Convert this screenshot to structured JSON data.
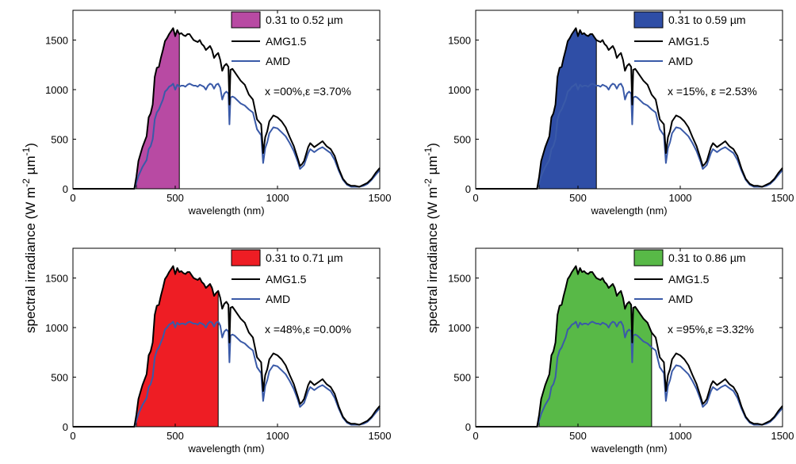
{
  "figure": {
    "ylabel": "spectral  irradiance  (W m",
    "ylabel_sup1": "-2",
    "ylabel_mid": "  µm",
    "ylabel_sup2": "-1",
    "ylabel_end": ")"
  },
  "chart_data": [
    {
      "type": "area",
      "panel": "top-left",
      "xlabel": "wavelength (nm)",
      "xlim": [
        0,
        1500
      ],
      "ylim": [
        0,
        1800
      ],
      "xticks": [
        0,
        500,
        1000,
        1500
      ],
      "yticks": [
        0,
        500,
        1000,
        1500
      ],
      "fill_range_nm": [
        310,
        520
      ],
      "fill_color": "#b84aa3",
      "legend": [
        "0.31 to 0.52 µm",
        "AMG1.5",
        "AMD"
      ],
      "annotation": "x =00%,ε =3.70%",
      "grid": false,
      "legend_position": "top-right"
    },
    {
      "type": "area",
      "panel": "top-right",
      "xlabel": "wavelength (nm)",
      "xlim": [
        0,
        1500
      ],
      "ylim": [
        0,
        1800
      ],
      "xticks": [
        0,
        500,
        1000,
        1500
      ],
      "yticks": [
        0,
        500,
        1000,
        1500
      ],
      "fill_range_nm": [
        310,
        590
      ],
      "fill_color": "#2f4ea6",
      "legend": [
        "0.31 to 0.59 µm",
        "AMG1.5",
        "AMD"
      ],
      "annotation": "x =15%, ε =2.53%",
      "grid": false,
      "legend_position": "top-right"
    },
    {
      "type": "area",
      "panel": "bottom-left",
      "xlabel": "wavelength (nm)",
      "xlim": [
        0,
        1500
      ],
      "ylim": [
        0,
        1800
      ],
      "xticks": [
        0,
        500,
        1000,
        1500
      ],
      "yticks": [
        0,
        500,
        1000,
        1500
      ],
      "fill_range_nm": [
        310,
        710
      ],
      "fill_color": "#ee1d24",
      "legend": [
        "0.31 to 0.71 µm",
        "AMG1.5",
        "AMD"
      ],
      "annotation": "x =48%,ε =0.00%",
      "grid": false,
      "legend_position": "top-right"
    },
    {
      "type": "area",
      "panel": "bottom-right",
      "xlabel": "wavelength (nm)",
      "xlim": [
        0,
        1500
      ],
      "ylim": [
        0,
        1800
      ],
      "xticks": [
        0,
        500,
        1000,
        1500
      ],
      "yticks": [
        0,
        500,
        1000,
        1500
      ],
      "fill_range_nm": [
        310,
        860
      ],
      "fill_color": "#58b947",
      "legend": [
        "0.31 to 0.86 µm",
        "AMG1.5",
        "AMD"
      ],
      "annotation": "x =95%,ε =3.32%",
      "grid": false,
      "legend_position": "top-right"
    }
  ],
  "series": {
    "AMG1.5": {
      "color": "#000000",
      "x": [
        0,
        300,
        310,
        320,
        340,
        360,
        370,
        380,
        390,
        400,
        410,
        420,
        430,
        440,
        450,
        460,
        470,
        480,
        490,
        500,
        510,
        520,
        530,
        540,
        550,
        560,
        570,
        580,
        590,
        600,
        610,
        620,
        630,
        640,
        650,
        660,
        670,
        680,
        690,
        700,
        710,
        720,
        730,
        740,
        750,
        760,
        765,
        770,
        780,
        790,
        800,
        820,
        840,
        860,
        880,
        900,
        920,
        930,
        940,
        950,
        960,
        980,
        1000,
        1020,
        1040,
        1060,
        1080,
        1100,
        1110,
        1120,
        1130,
        1140,
        1150,
        1160,
        1180,
        1200,
        1220,
        1240,
        1260,
        1280,
        1300,
        1320,
        1340,
        1360,
        1380,
        1400,
        1420,
        1440,
        1460,
        1480,
        1500
      ],
      "y": [
        0,
        0,
        120,
        280,
        420,
        530,
        720,
        760,
        850,
        1130,
        1220,
        1230,
        1320,
        1400,
        1490,
        1520,
        1560,
        1590,
        1620,
        1540,
        1600,
        1560,
        1570,
        1550,
        1540,
        1560,
        1560,
        1530,
        1500,
        1490,
        1480,
        1500,
        1460,
        1440,
        1400,
        1420,
        1440,
        1400,
        1320,
        1350,
        1370,
        1300,
        1190,
        1240,
        1260,
        1230,
        850,
        1200,
        1210,
        1180,
        1150,
        1090,
        1050,
        950,
        900,
        700,
        650,
        360,
        520,
        580,
        680,
        740,
        720,
        680,
        620,
        520,
        430,
        300,
        230,
        250,
        280,
        350,
        420,
        460,
        420,
        450,
        480,
        430,
        400,
        330,
        200,
        100,
        50,
        30,
        30,
        20,
        40,
        60,
        100,
        160,
        210
      ]
    },
    "AMD": {
      "color": "#3a5aa8",
      "x": [
        0,
        300,
        310,
        320,
        340,
        360,
        370,
        380,
        390,
        400,
        410,
        420,
        430,
        440,
        450,
        460,
        470,
        480,
        490,
        500,
        510,
        520,
        530,
        540,
        550,
        560,
        570,
        580,
        590,
        600,
        610,
        620,
        630,
        640,
        650,
        660,
        670,
        680,
        690,
        700,
        710,
        720,
        730,
        740,
        750,
        760,
        765,
        770,
        780,
        790,
        800,
        820,
        840,
        860,
        880,
        900,
        920,
        930,
        940,
        950,
        960,
        980,
        1000,
        1020,
        1040,
        1060,
        1080,
        1100,
        1110,
        1120,
        1130,
        1140,
        1150,
        1160,
        1180,
        1200,
        1220,
        1240,
        1260,
        1280,
        1300,
        1320,
        1340,
        1360,
        1380,
        1400,
        1420,
        1440,
        1460,
        1480,
        1500
      ],
      "y": [
        0,
        0,
        60,
        130,
        220,
        290,
        400,
        430,
        500,
        700,
        770,
        800,
        850,
        900,
        980,
        1000,
        1030,
        1040,
        1060,
        1000,
        1050,
        1030,
        1040,
        1040,
        1030,
        1050,
        1060,
        1050,
        1040,
        1040,
        1030,
        1050,
        1040,
        1030,
        1000,
        1040,
        1060,
        1050,
        1010,
        1050,
        1060,
        1020,
        900,
        960,
        980,
        960,
        650,
        920,
        930,
        920,
        900,
        860,
        840,
        800,
        770,
        600,
        540,
        260,
        410,
        470,
        560,
        620,
        610,
        570,
        530,
        460,
        380,
        270,
        200,
        220,
        240,
        300,
        360,
        400,
        370,
        400,
        420,
        390,
        360,
        290,
        180,
        90,
        40,
        20,
        20,
        20,
        30,
        50,
        90,
        140,
        190
      ]
    }
  }
}
